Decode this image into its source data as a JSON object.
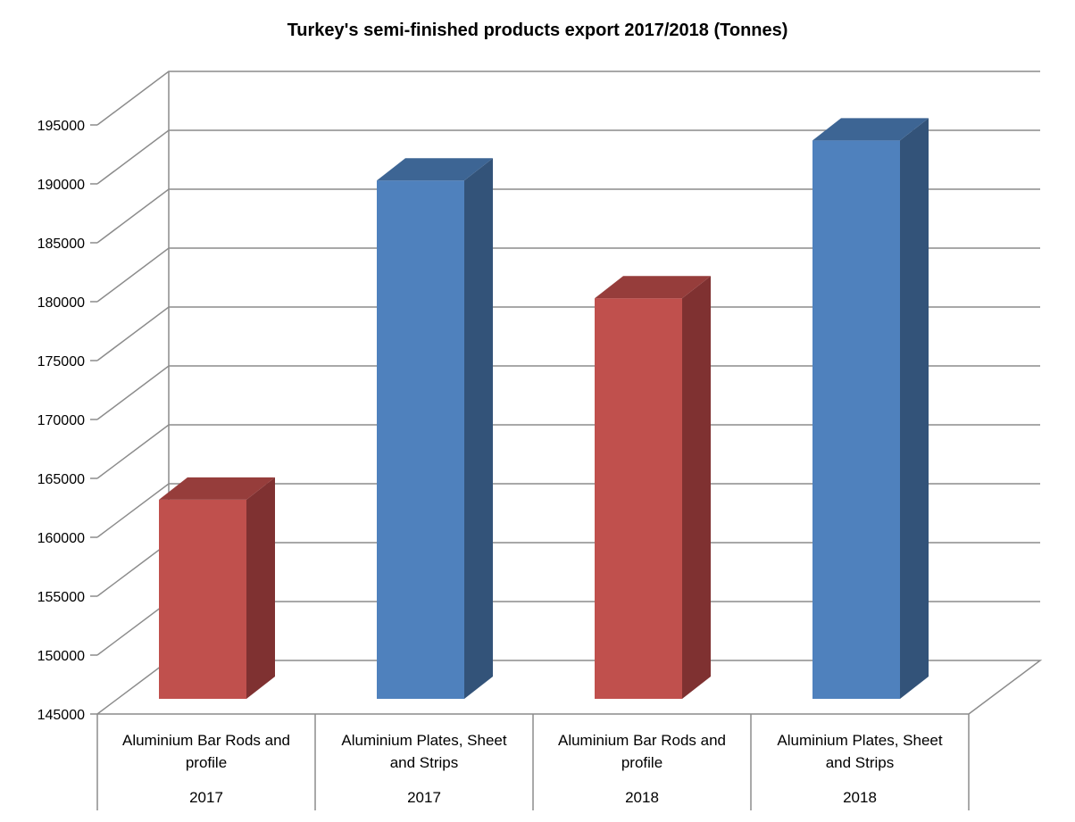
{
  "chart_data": {
    "type": "bar",
    "title": "Turkey's semi-finished products export 2017/2018 (Tonnes)",
    "xlabel": "",
    "ylabel": "",
    "ylim": [
      145000,
      195000
    ],
    "ytick_step": 5000,
    "yticks": [
      "145000",
      "150000",
      "155000",
      "160000",
      "165000",
      "170000",
      "175000",
      "180000",
      "185000",
      "190000",
      "195000"
    ],
    "grid": true,
    "legend": "none",
    "three_d": true,
    "categories": [
      {
        "product": "Aluminium Bar Rods and profile",
        "product_lines": [
          "Aluminium Bar Rods and",
          "profile"
        ],
        "year": "2017"
      },
      {
        "product": "Aluminium Plates, Sheet and Strips",
        "product_lines": [
          "Aluminium Plates, Sheet",
          "and Strips"
        ],
        "year": "2017"
      },
      {
        "product": "Aluminium Bar Rods and profile",
        "product_lines": [
          "Aluminium Bar Rods and",
          "profile"
        ],
        "year": "2018"
      },
      {
        "product": "Aluminium Plates, Sheet and Strips",
        "product_lines": [
          "Aluminium Plates, Sheet",
          "and Strips"
        ],
        "year": "2018"
      }
    ],
    "values": [
      161900,
      189000,
      179000,
      192400
    ],
    "bar_colors": [
      "#c0504d",
      "#4f81bd",
      "#c0504d",
      "#4f81bd"
    ],
    "bar_side_colors": [
      "#7f3131",
      "#335379",
      "#7f3131",
      "#335379"
    ],
    "bar_top_colors": [
      "#963d3b",
      "#3d6594",
      "#963d3b",
      "#3d6594"
    ],
    "grid_color": "#8c8c8c"
  }
}
